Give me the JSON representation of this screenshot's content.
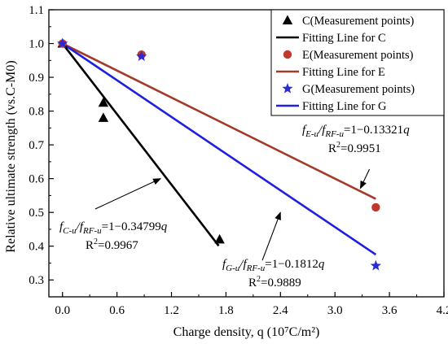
{
  "chart_data": {
    "type": "scatter",
    "xlabel": "Charge density, q (10⁷C/m²)",
    "ylabel": "Relative ultimate strength (vs.C-M0)",
    "xlim": [
      -0.15,
      4.2
    ],
    "ylim": [
      0.25,
      1.1
    ],
    "xticks": [
      "0.0",
      "0.6",
      "1.2",
      "1.8",
      "2.4",
      "3.0",
      "3.6",
      "4.2"
    ],
    "yticks": [
      "0.3",
      "0.4",
      "0.5",
      "0.6",
      "0.7",
      "0.8",
      "0.9",
      "1.0",
      "1.1"
    ],
    "legend_position": "top-right",
    "series": [
      {
        "name": "C(Measurement points)",
        "kind": "points",
        "marker": "triangle",
        "color": "#000000",
        "x": [
          0.0,
          0.45,
          0.45,
          1.73
        ],
        "y": [
          1.0,
          0.825,
          0.78,
          0.42
        ]
      },
      {
        "name": "Fitting Line for C",
        "kind": "line",
        "color": "#000000",
        "x": [
          0.0,
          1.72
        ],
        "y": [
          1.0,
          0.401
        ]
      },
      {
        "name": "E(Measurement points)",
        "kind": "points",
        "marker": "circle",
        "color": "#c0392b",
        "x": [
          0.0,
          0.87,
          3.45
        ],
        "y": [
          1.0,
          0.967,
          0.515
        ]
      },
      {
        "name": "Fitting Line for E",
        "kind": "line",
        "color": "#a23b2b",
        "x": [
          0.0,
          3.45
        ],
        "y": [
          1.0,
          0.54
        ]
      },
      {
        "name": "G(Measurement points)",
        "kind": "points",
        "marker": "star",
        "color": "#2b2bd6",
        "x": [
          0.0,
          0.87,
          3.45
        ],
        "y": [
          1.0,
          0.962,
          0.342
        ]
      },
      {
        "name": "Fitting Line for G",
        "kind": "line",
        "color": "#1f1fe0",
        "x": [
          0.0,
          3.45
        ],
        "y": [
          1.0,
          0.375
        ]
      }
    ],
    "annotations": [
      {
        "id": "e",
        "eq_prefix": "f",
        "eq_sub1": "E-u",
        "eq_mid": "/f",
        "eq_sub2": "RF-u",
        "eq_rest": "=1−0.13321q",
        "r2_prefix": "R",
        "r2_sup": "2",
        "r2_rest": "=0.9951",
        "arrow_from": [
          3.38,
          0.628
        ],
        "arrow_to": [
          3.28,
          0.571
        ]
      },
      {
        "id": "c",
        "eq_prefix": "f",
        "eq_sub1": "C-u",
        "eq_mid": "/f",
        "eq_sub2": "RF-u",
        "eq_rest": "=1−0.34799q",
        "r2_prefix": "R",
        "r2_sup": "2",
        "r2_rest": "=0.9967",
        "arrow_from": [
          0.36,
          0.51
        ],
        "arrow_to": [
          1.08,
          0.6
        ]
      },
      {
        "id": "g",
        "eq_prefix": "f",
        "eq_sub1": "G-u",
        "eq_mid": "/f",
        "eq_sub2": "RF-u",
        "eq_rest": "=1−0.1812q",
        "r2_prefix": "R",
        "r2_sup": "2",
        "r2_rest": "=0.9889",
        "arrow_from": [
          2.2,
          0.358
        ],
        "arrow_to": [
          2.4,
          0.5
        ]
      }
    ]
  }
}
